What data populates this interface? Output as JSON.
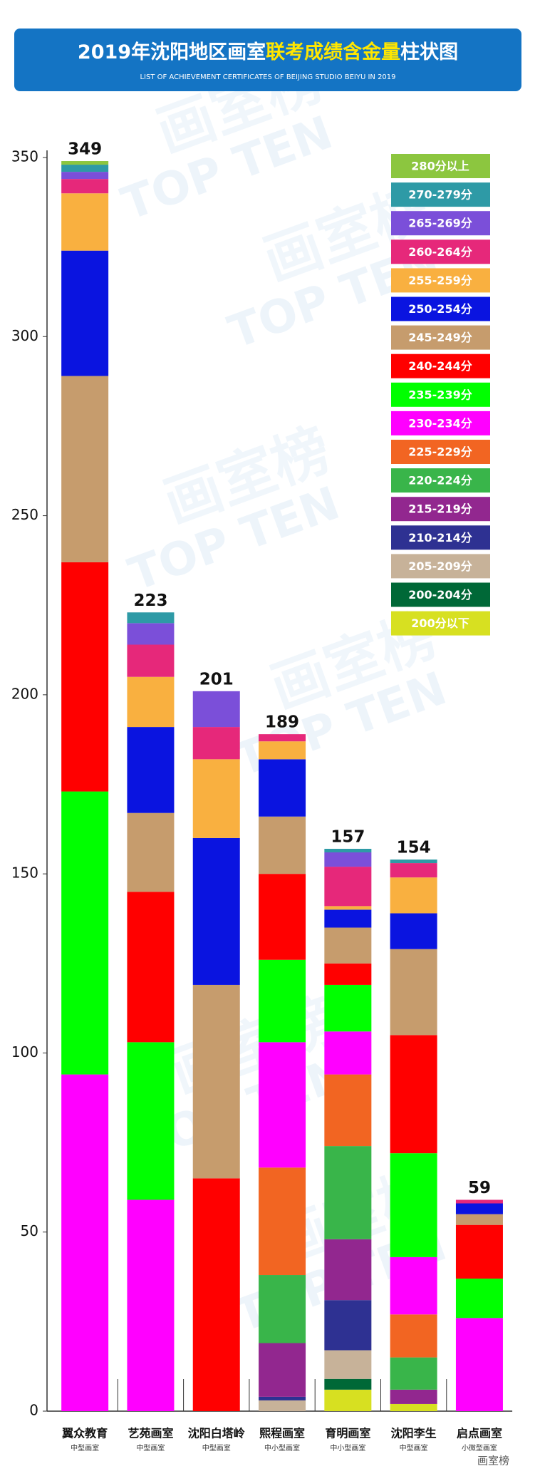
{
  "chart_data": {
    "type": "stacked_bar",
    "title_parts": [
      "2019年沈阳地区画室",
      "联考成绩含金量",
      "柱状图"
    ],
    "subtitle": "LIST OF ACHIEVEMENT CERTIFICATES OF BEIJING STUDIO BEIYU IN 2019",
    "watermark": "TOP TEN",
    "watermark_cn": "画室榜",
    "credit": "画室榜",
    "categories": [
      "翼众教育",
      "艺苑画室",
      "沈阳白塔岭",
      "熙程画室",
      "育明画室",
      "沈阳李生",
      "启点画室"
    ],
    "category_notes": [
      "中型画室",
      "中型画室",
      "中型画室",
      "中小型画室",
      "中小型画室",
      "中型画室",
      "小微型画室"
    ],
    "totals": [
      349,
      223,
      201,
      189,
      157,
      154,
      59
    ],
    "ylim": [
      0,
      350
    ],
    "yticks": [
      0,
      50,
      100,
      150,
      200,
      250,
      300,
      350
    ],
    "series": [
      {
        "name": "280分以上",
        "color": "#8cc63f",
        "values": [
          1,
          0,
          0,
          0,
          0,
          0,
          0
        ]
      },
      {
        "name": "270-279分",
        "color": "#2e9aa6",
        "values": [
          2,
          3,
          0,
          0,
          1,
          1,
          0
        ]
      },
      {
        "name": "265-269分",
        "color": "#7b4fd9",
        "values": [
          2,
          6,
          10,
          0,
          4,
          0,
          0
        ]
      },
      {
        "name": "260-264分",
        "color": "#e6287a",
        "values": [
          4,
          9,
          9,
          2,
          11,
          4,
          1
        ]
      },
      {
        "name": "255-259分",
        "color": "#f9b040",
        "values": [
          16,
          14,
          22,
          5,
          1,
          10,
          0
        ]
      },
      {
        "name": "250-254分",
        "color": "#0a14e0",
        "values": [
          35,
          24,
          41,
          16,
          5,
          10,
          3
        ]
      },
      {
        "name": "245-249分",
        "color": "#c69c6d",
        "values": [
          52,
          22,
          54,
          16,
          10,
          24,
          3
        ]
      },
      {
        "name": "240-244分",
        "color": "#ff0000",
        "values": [
          64,
          42,
          65,
          24,
          6,
          33,
          15
        ]
      },
      {
        "name": "235-239分",
        "color": "#00ff00",
        "values": [
          79,
          44,
          0,
          23,
          13,
          29,
          11
        ]
      },
      {
        "name": "230-234分",
        "color": "#ff00ff",
        "values": [
          94,
          59,
          0,
          35,
          12,
          16,
          26
        ]
      },
      {
        "name": "225-229分",
        "color": "#f26522",
        "values": [
          0,
          0,
          0,
          30,
          20,
          12,
          0
        ]
      },
      {
        "name": "220-224分",
        "color": "#39b54a",
        "values": [
          0,
          0,
          0,
          19,
          26,
          9,
          0
        ]
      },
      {
        "name": "215-219分",
        "color": "#92278f",
        "values": [
          0,
          0,
          0,
          15,
          17,
          4,
          0
        ]
      },
      {
        "name": "210-214分",
        "color": "#2e3192",
        "values": [
          0,
          0,
          0,
          1,
          14,
          0,
          0
        ]
      },
      {
        "name": "205-209分",
        "color": "#c7b299",
        "values": [
          0,
          0,
          0,
          3,
          8,
          0,
          0
        ]
      },
      {
        "name": "200-204分",
        "color": "#006837",
        "values": [
          0,
          0,
          0,
          0,
          3,
          0,
          0
        ]
      },
      {
        "name": "200分以下",
        "color": "#d7e021",
        "values": [
          0,
          0,
          0,
          0,
          6,
          2,
          0
        ]
      }
    ]
  }
}
